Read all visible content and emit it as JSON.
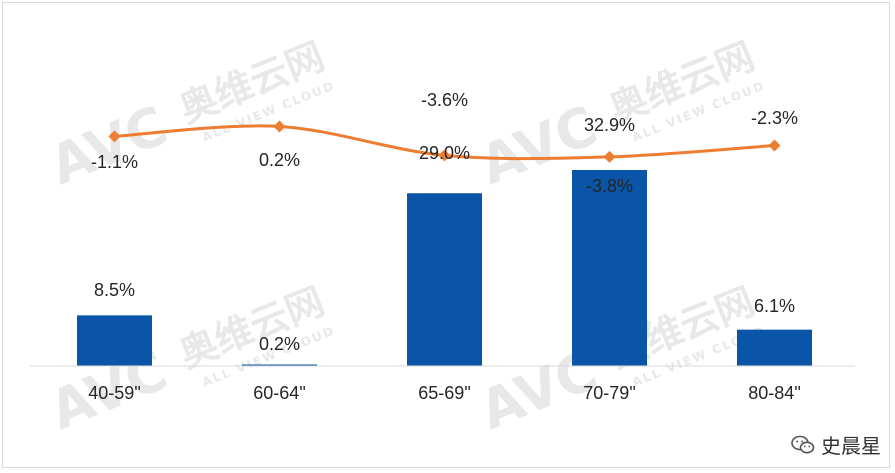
{
  "chart_data": {
    "type": "bar",
    "categories": [
      "40-59\"",
      "60-64\"",
      "65-69\"",
      "70-79\"",
      "80-84\""
    ],
    "series": [
      {
        "kind": "bar",
        "values": [
          8.5,
          0.2,
          29.0,
          32.9,
          6.1
        ],
        "labels": [
          "8.5%",
          "0.2%",
          "29.0%",
          "32.9%",
          "6.1%"
        ],
        "color": "#0a55a8"
      },
      {
        "kind": "line",
        "values": [
          -1.1,
          0.2,
          -3.6,
          -3.8,
          -2.3
        ],
        "labels": [
          "-1.1%",
          "0.2%",
          "-3.6%",
          "-3.8%",
          "-2.3%"
        ],
        "color": "#ed7d31",
        "marker": "diamond"
      }
    ],
    "title": "",
    "xlabel": "",
    "ylabel": "",
    "grid": false,
    "legend": "none"
  },
  "watermark": {
    "brand": "AVC",
    "name": "奥维云网",
    "sub": "ALL VIEW CLOUD"
  },
  "account": {
    "icon": "wechat-icon",
    "name": "史晨星"
  }
}
